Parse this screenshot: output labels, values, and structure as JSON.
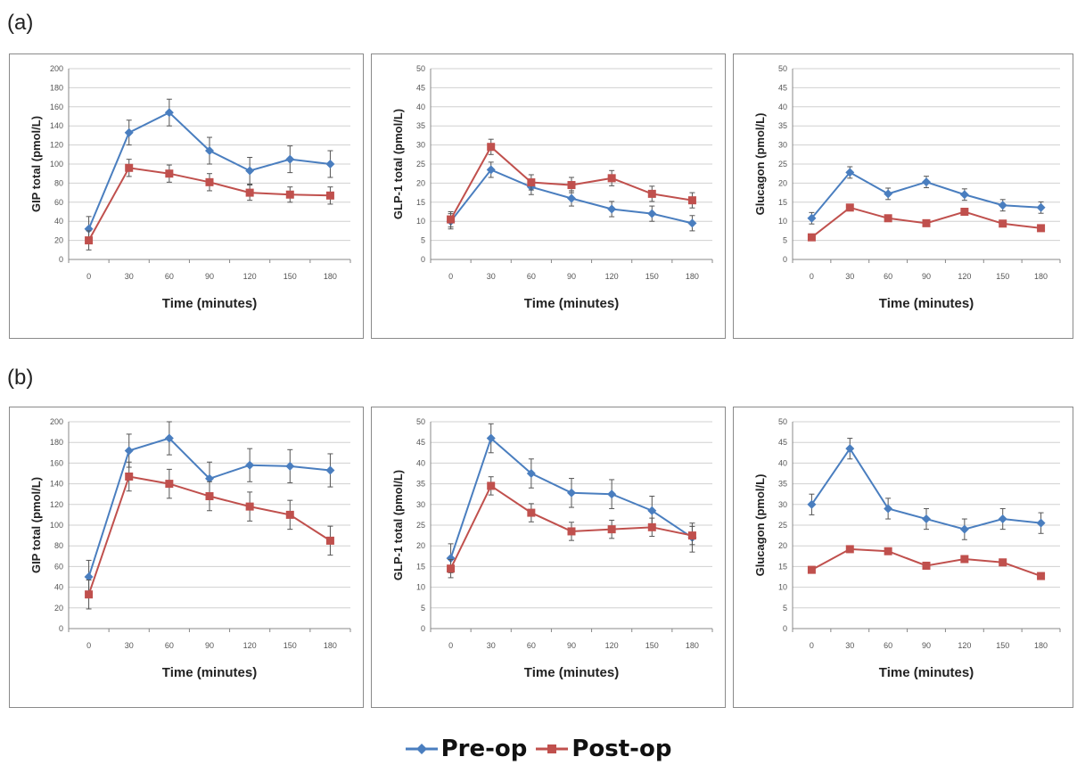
{
  "panels": [
    {
      "label": "(a)"
    },
    {
      "label": "(b)"
    }
  ],
  "legend": [
    {
      "name": "Pre-op",
      "color": "#4a7ebf",
      "marker": "diamond"
    },
    {
      "name": "Post-op",
      "color": "#c0504d",
      "marker": "square"
    }
  ],
  "chart_data": [
    {
      "type": "line",
      "panel": "(a)",
      "xlabel": "Time (minutes)",
      "ylabel": "GIP total (pmol/L)",
      "x": [
        0,
        30,
        60,
        90,
        120,
        150,
        180
      ],
      "ylim": [
        0,
        200
      ],
      "ytick_step": 20,
      "grid": true,
      "series": [
        {
          "name": "Pre-op",
          "values": [
            32,
            133,
            154,
            114,
            93,
            105,
            100
          ],
          "error": [
            13,
            13,
            14,
            14,
            14,
            14,
            14
          ]
        },
        {
          "name": "Post-op",
          "values": [
            20,
            96,
            90,
            81,
            70,
            68,
            67
          ],
          "error": [
            10,
            9,
            9,
            9,
            8,
            8,
            9
          ]
        }
      ]
    },
    {
      "type": "line",
      "panel": "(a)",
      "xlabel": "Time (minutes)",
      "ylabel": "GLP-1 total (pmol/L)",
      "x": [
        0,
        30,
        60,
        90,
        120,
        150,
        180
      ],
      "ylim": [
        0,
        50
      ],
      "ytick_step": 5,
      "grid": true,
      "series": [
        {
          "name": "Pre-op",
          "values": [
            10,
            23.5,
            19,
            16,
            13.2,
            12,
            9.5
          ],
          "error": [
            2,
            2,
            2,
            2,
            2,
            2,
            2
          ]
        },
        {
          "name": "Post-op",
          "values": [
            10.5,
            29.5,
            20.2,
            19.5,
            21.3,
            17.2,
            15.5
          ],
          "error": [
            2,
            2,
            2,
            2,
            2,
            2,
            2
          ]
        }
      ]
    },
    {
      "type": "line",
      "panel": "(a)",
      "xlabel": "Time (minutes)",
      "ylabel": "Glucagon (pmol/L)",
      "x": [
        0,
        30,
        60,
        90,
        120,
        150,
        180
      ],
      "ylim": [
        0,
        50
      ],
      "ytick_step": 5,
      "grid": true,
      "series": [
        {
          "name": "Pre-op",
          "values": [
            10.8,
            22.8,
            17.2,
            20.3,
            17,
            14.2,
            13.6
          ],
          "error": [
            1.5,
            1.5,
            1.5,
            1.5,
            1.5,
            1.5,
            1.5
          ]
        },
        {
          "name": "Post-op",
          "values": [
            5.8,
            13.6,
            10.8,
            9.5,
            12.5,
            9.4,
            8.2
          ],
          "error": [
            0.8,
            0.8,
            0.8,
            0.8,
            0.8,
            0.8,
            0.8
          ]
        }
      ]
    },
    {
      "type": "line",
      "panel": "(b)",
      "xlabel": "Time (minutes)",
      "ylabel": "GIP total (pmol/L)",
      "x": [
        0,
        30,
        60,
        90,
        120,
        150,
        180
      ],
      "ylim": [
        0,
        200
      ],
      "ytick_step": 20,
      "grid": true,
      "series": [
        {
          "name": "Pre-op",
          "values": [
            50,
            172,
            184,
            145,
            158,
            157,
            153
          ],
          "error": [
            16,
            16,
            16,
            16,
            16,
            16,
            16
          ]
        },
        {
          "name": "Post-op",
          "values": [
            33,
            147,
            140,
            128,
            118,
            110,
            85
          ],
          "error": [
            14,
            14,
            14,
            14,
            14,
            14,
            14
          ]
        }
      ]
    },
    {
      "type": "line",
      "panel": "(b)",
      "xlabel": "Time (minutes)",
      "ylabel": "GLP-1 total (pmol/L)",
      "x": [
        0,
        30,
        60,
        90,
        120,
        150,
        180
      ],
      "ylim": [
        0,
        50
      ],
      "ytick_step": 5,
      "grid": true,
      "series": [
        {
          "name": "Pre-op",
          "values": [
            17,
            46,
            37.5,
            32.8,
            32.5,
            28.5,
            22
          ],
          "error": [
            3.5,
            3.5,
            3.5,
            3.5,
            3.5,
            3.5,
            3.5
          ]
        },
        {
          "name": "Post-op",
          "values": [
            14.5,
            34.5,
            28,
            23.5,
            24,
            24.5,
            22.5
          ],
          "error": [
            2.2,
            2.2,
            2.2,
            2.2,
            2.2,
            2.2,
            2.2
          ]
        }
      ]
    },
    {
      "type": "line",
      "panel": "(b)",
      "xlabel": "Time (minutes)",
      "ylabel": "Glucagon (pmol/L)",
      "x": [
        0,
        30,
        60,
        90,
        120,
        150,
        180
      ],
      "ylim": [
        0,
        50
      ],
      "ytick_step": 5,
      "grid": true,
      "series": [
        {
          "name": "Pre-op",
          "values": [
            30,
            43.5,
            29,
            26.5,
            24,
            26.5,
            25.5
          ],
          "error": [
            2.5,
            2.5,
            2.5,
            2.5,
            2.5,
            2.5,
            2.5
          ]
        },
        {
          "name": "Post-op",
          "values": [
            14.2,
            19.2,
            18.7,
            15.2,
            16.8,
            16,
            12.7
          ],
          "error": [
            0.8,
            0.8,
            0.8,
            0.8,
            0.8,
            0.8,
            0.8
          ]
        }
      ]
    }
  ]
}
